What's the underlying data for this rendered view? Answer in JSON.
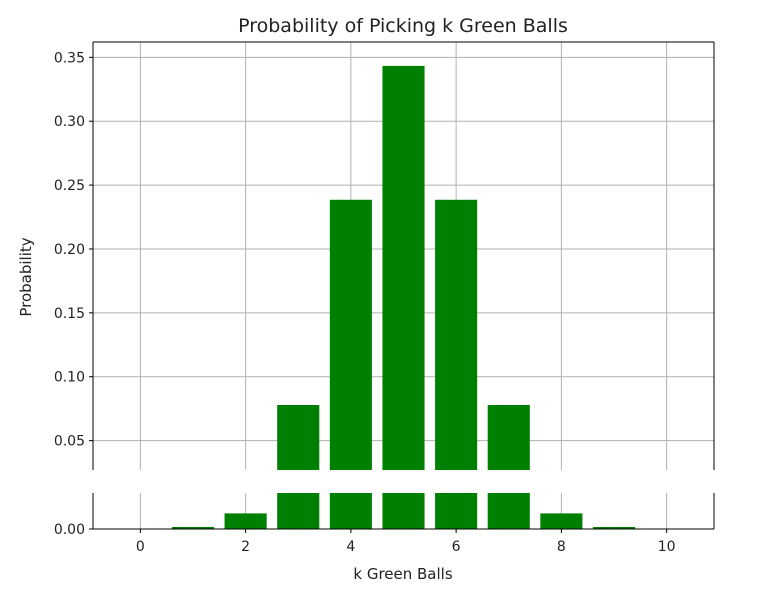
{
  "chart_data": {
    "type": "bar",
    "title": "Probability of Picking k Green Balls",
    "xlabel": "k Green Balls",
    "ylabel": "Probability",
    "x": [
      0,
      1,
      2,
      3,
      4,
      5,
      6,
      7,
      8,
      9,
      10
    ],
    "values": [
      0.0,
      0.0015,
      0.0117,
      0.0779,
      0.2385,
      0.3433,
      0.2385,
      0.0779,
      0.0117,
      0.0015,
      0.0
    ],
    "bar_color": "#008000",
    "grid": true,
    "broken_y_axis": true,
    "top_panel": {
      "ylim": [
        0.027,
        0.362
      ],
      "yticks": [
        "0.05",
        "0.10",
        "0.15",
        "0.20",
        "0.25",
        "0.30",
        "0.35"
      ]
    },
    "bottom_panel": {
      "ylim": [
        0,
        0.027
      ],
      "yticks": [
        "0.00"
      ]
    },
    "xlim": [
      -0.9,
      10.9
    ],
    "xticks": [
      "0",
      "2",
      "4",
      "6",
      "8",
      "10"
    ]
  }
}
